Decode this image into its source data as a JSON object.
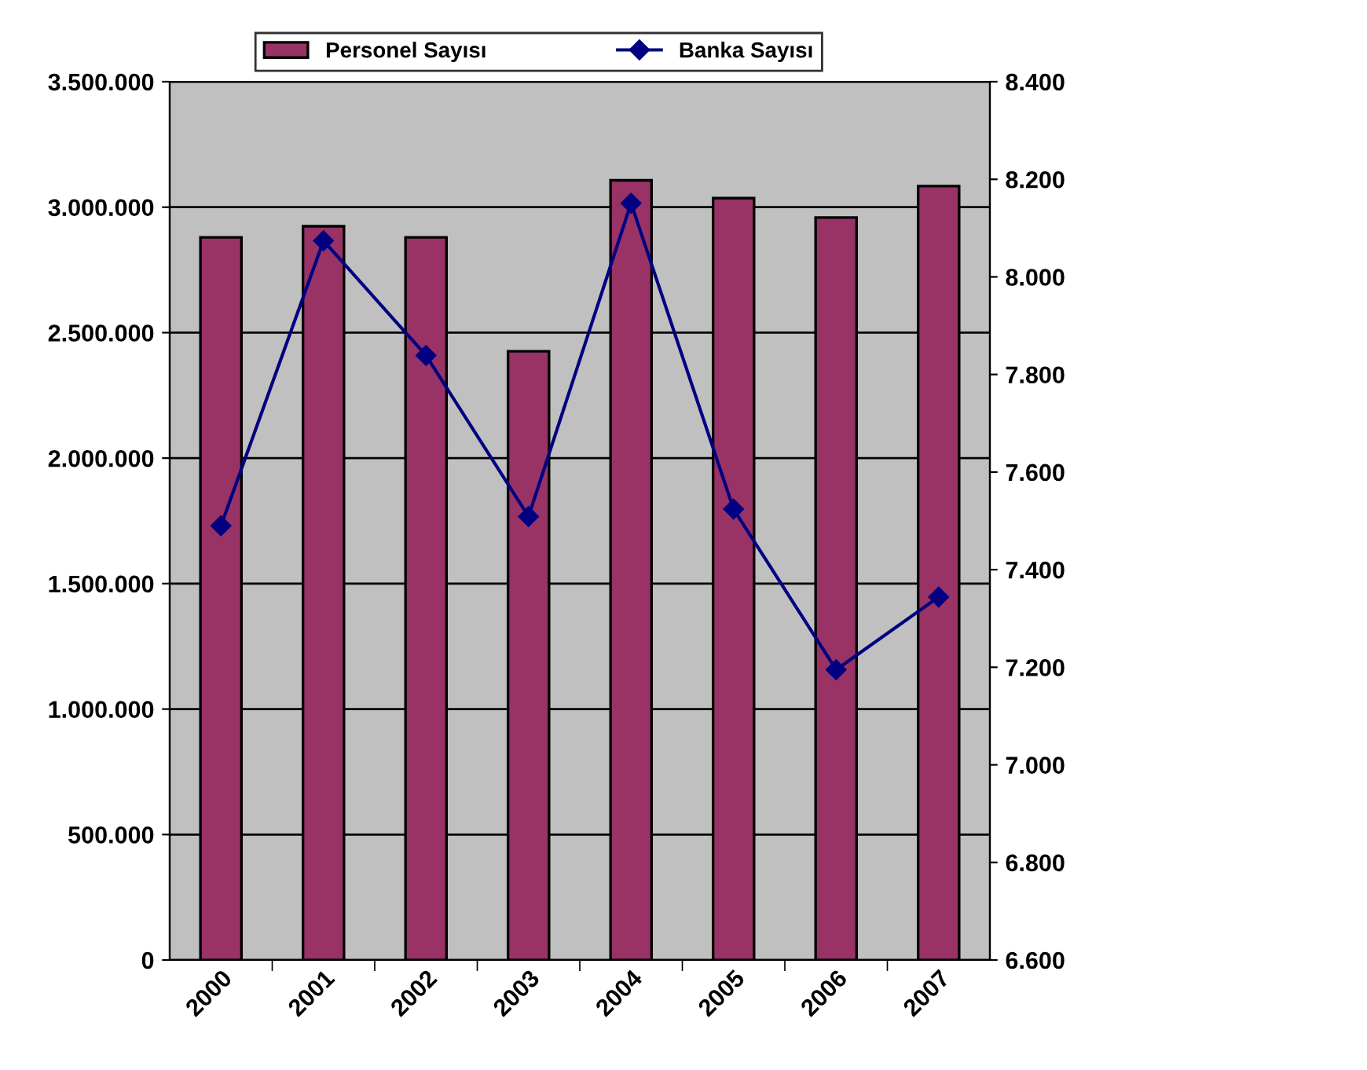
{
  "chart_data": {
    "type": "bar",
    "categories": [
      "2000",
      "2001",
      "2002",
      "2003",
      "2004",
      "2005",
      "2006",
      "2007"
    ],
    "series": [
      {
        "name": "Personel Sayısı",
        "color": "#993366",
        "values": [
          2880000,
          2924000,
          2880000,
          2426000,
          3107000,
          3036000,
          2959000,
          3084000
        ]
      },
      {
        "name": "Banka Sayısı",
        "type": "line",
        "axis": "y2",
        "color": "#000080",
        "values": [
          7490,
          8074,
          7839,
          7509,
          8151,
          7524,
          7195,
          7344
        ]
      }
    ],
    "ylim": [
      0,
      3500000
    ],
    "yticks": [
      {
        "value": 0,
        "label": "0"
      },
      {
        "value": 500000,
        "label": "500.000"
      },
      {
        "value": 1000000,
        "label": "1.000.000"
      },
      {
        "value": 1500000,
        "label": "1.500.000"
      },
      {
        "value": 2000000,
        "label": "2.000.000"
      },
      {
        "value": 2500000,
        "label": "2.500.000"
      },
      {
        "value": 3000000,
        "label": "3.000.000"
      },
      {
        "value": 3500000,
        "label": "3.500.000"
      }
    ],
    "y2lim": [
      6600,
      8400
    ],
    "y2ticks": [
      {
        "value": 6600,
        "label": "6.600"
      },
      {
        "value": 6800,
        "label": "6.800"
      },
      {
        "value": 7000,
        "label": "7.000"
      },
      {
        "value": 7200,
        "label": "7.200"
      },
      {
        "value": 7400,
        "label": "7.400"
      },
      {
        "value": 7600,
        "label": "7.600"
      },
      {
        "value": 7800,
        "label": "7.800"
      },
      {
        "value": 8000,
        "label": "8.000"
      },
      {
        "value": 8200,
        "label": "8.200"
      },
      {
        "value": 8400,
        "label": "8.400"
      }
    ],
    "grid": "y",
    "legend": "top",
    "marker": "diamond"
  }
}
